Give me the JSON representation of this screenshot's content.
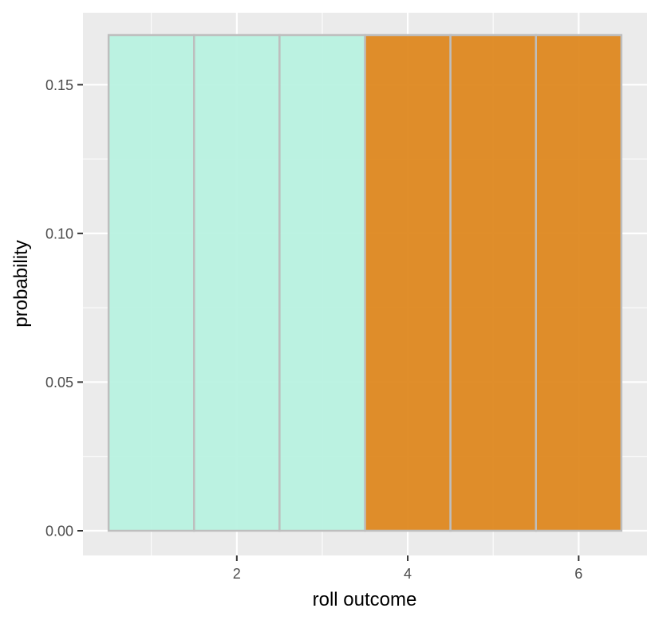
{
  "chart_data": {
    "type": "bar",
    "title": "",
    "xlabel": "roll outcome",
    "ylabel": "probability",
    "x": [
      1,
      2,
      3,
      4,
      5,
      6
    ],
    "values": [
      0.1667,
      0.1667,
      0.1667,
      0.1667,
      0.1667,
      0.1667
    ],
    "fill_colors": [
      "#b8f2e0",
      "#b8f2e0",
      "#b8f2e0",
      "#de8820",
      "#de8820",
      "#de8820"
    ],
    "bar_outline_color": "#bebebe",
    "xlim": [
      0.5,
      6.5
    ],
    "ylim": [
      0,
      0.1667
    ],
    "x_ticks": [
      2,
      4,
      6
    ],
    "x_tick_labels": [
      "2",
      "4",
      "6"
    ],
    "y_ticks": [
      0,
      0.05,
      0.1,
      0.15
    ],
    "y_tick_labels": [
      "0.00",
      "0.05",
      "0.10",
      "0.15"
    ],
    "panel_background": "#ebebeb",
    "grid": true,
    "legend": "none"
  }
}
